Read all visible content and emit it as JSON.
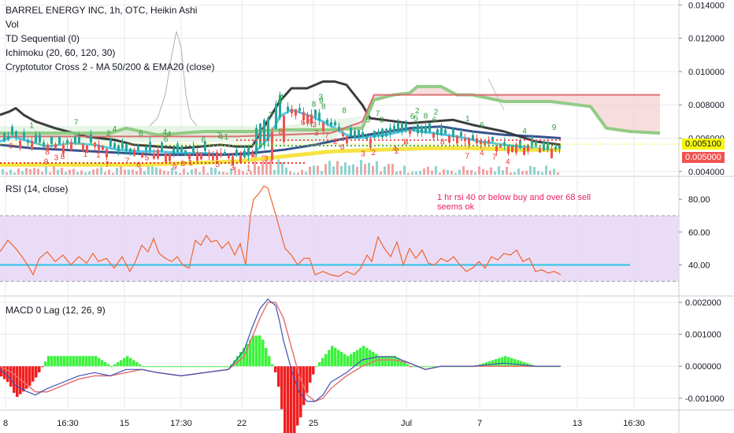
{
  "header": {
    "title": "BARREL ENERGY INC, 1h, OTC, Heikin Ashi",
    "studies": [
      "Vol",
      "TD Sequential (0)",
      "Ichimoku (20, 60, 120, 30)",
      "Cryptotutor Cross 2 - MA 50/200 & EMA20 (close)"
    ]
  },
  "rsi_label": "RSI (14, close)",
  "macd_label": "MACD 0 Lag (12, 26, 9)",
  "annotation": [
    "1 hr rsi 40 or below buy and over 68 sell",
    "seems ok"
  ],
  "price_tags": {
    "current": "0.005100",
    "low": "0.005000"
  },
  "colors": {
    "background": "#ffffff",
    "grid": "#e6e9ef",
    "rsi_band": "#e6d6f4",
    "rsi_line": "#f0642d",
    "rsi_ref": "#27c4e5",
    "ema_cyan": "#45c6e8",
    "ma_navy": "#2d4a86",
    "kijun_black": "#333333",
    "ichimoku_green": "#8cc981",
    "ichimoku_red": "#d9686a",
    "yellow_ma": "#f6e23a",
    "macd_up": "#3cf23c",
    "macd_down": "#f21e1e",
    "td_red": "#e53935",
    "td_green": "#2e9b3b",
    "tag_yellow": "#f6f60d",
    "tag_red": "#ef5350"
  },
  "chart_data": [
    {
      "type": "line",
      "title": "BARREL ENERGY INC, 1h, OTC, Heikin Ashi",
      "y_ticks": [
        "0.004000",
        "0.006000",
        "0.008000",
        "0.010000",
        "0.012000",
        "0.014000"
      ],
      "ylim": [
        0.0038,
        0.0143
      ],
      "x_ticks": [
        "8",
        "16:30",
        "15",
        "17:30",
        "22",
        "25",
        "Jul",
        "7",
        "13",
        "16:30"
      ],
      "series": [
        {
          "x": [
            0,
            16,
            30,
            60,
            90,
            120,
            150,
            180,
            200,
            230,
            260,
            290,
            310,
            325,
            335,
            345,
            355,
            370,
            390,
            410,
            425,
            440,
            455,
            470,
            490,
            520,
            550,
            580,
            610,
            640,
            660,
            680,
            700,
            712
          ],
          "y": [
            0.0058,
            0.0061,
            0.0059,
            0.0055,
            0.0057,
            0.0056,
            0.0053,
            0.0052,
            0.0052,
            0.0051,
            0.0051,
            0.005,
            0.005,
            0.0052,
            0.0057,
            0.0063,
            0.0073,
            0.0077,
            0.0074,
            0.007,
            0.0066,
            0.0062,
            0.006,
            0.0061,
            0.0062,
            0.0065,
            0.0063,
            0.0061,
            0.0058,
            0.0056,
            0.0055,
            0.0054,
            0.0053,
            0.0053
          ]
        },
        {
          "x": [
            0,
            20,
            40,
            80,
            120,
            160,
            200,
            240,
            280,
            320,
            360,
            400,
            440,
            480,
            520,
            560,
            600,
            640,
            680,
            712
          ],
          "y": [
            0.0056,
            0.0055,
            0.0054,
            0.0053,
            0.0052,
            0.0051,
            0.005,
            0.005,
            0.005,
            0.0051,
            0.0053,
            0.0056,
            0.006,
            0.0063,
            0.0066,
            0.0067,
            0.0064,
            0.0062,
            0.0061,
            0.006
          ]
        },
        {
          "x": [
            0,
            12,
            20,
            30,
            45,
            70,
            110,
            145,
            170,
            200,
            230,
            255,
            280,
            300,
            320,
            355,
            370,
            390,
            410,
            425,
            440,
            450,
            460,
            470,
            520,
            575,
            600,
            640,
            680,
            712
          ],
          "y": [
            0.0074,
            0.0076,
            0.0078,
            0.0074,
            0.007,
            0.0066,
            0.0061,
            0.0059,
            0.0056,
            0.0055,
            0.0054,
            0.0055,
            0.0056,
            0.0055,
            0.0055,
            0.0082,
            0.009,
            0.009,
            0.0094,
            0.0094,
            0.0092,
            0.0086,
            0.008,
            0.0072,
            0.0069,
            0.0071,
            0.0068,
            0.0064,
            0.0058,
            0.0056
          ]
        },
        {
          "x": [
            0,
            100,
            140,
            160,
            200,
            260,
            320,
            360,
            420,
            460,
            475,
            500,
            520,
            530,
            560,
            580,
            600,
            640,
            700,
            750,
            770,
            800,
            838
          ],
          "y": [
            0.0063,
            0.0063,
            0.0063,
            0.0066,
            0.0062,
            0.0064,
            0.0064,
            0.0065,
            0.0065,
            0.0066,
            0.0083,
            0.0086,
            0.0087,
            0.0091,
            0.0091,
            0.0086,
            0.0086,
            0.0082,
            0.0082,
            0.0079,
            0.0066,
            0.0064,
            0.0063
          ]
        },
        {
          "x": [
            0,
            100,
            200,
            300,
            360,
            420,
            460,
            475,
            500,
            600,
            700,
            838
          ],
          "y": [
            0.0061,
            0.0061,
            0.0061,
            0.0061,
            0.0062,
            0.0063,
            0.007,
            0.0086,
            0.0086,
            0.0086,
            0.0086,
            0.0086
          ]
        },
        {
          "x": [
            0,
            60,
            120,
            180,
            240,
            300,
            360,
            420,
            480,
            540,
            600,
            660,
            712
          ],
          "y": [
            0.0044,
            0.0044,
            0.0044,
            0.0044,
            0.0045,
            0.0046,
            0.0049,
            0.0052,
            0.0053,
            0.0054,
            0.0054,
            0.0053,
            0.0053
          ]
        }
      ]
    },
    {
      "type": "line",
      "title": "RSI (14, close)",
      "ylim": [
        22,
        93
      ],
      "y_ticks": [
        "40.00",
        "60.00",
        "80.00"
      ],
      "band": [
        30,
        70
      ],
      "reference": 40,
      "series": [
        {
          "x": [
            0,
            10,
            20,
            28,
            35,
            42,
            50,
            60,
            70,
            80,
            90,
            100,
            110,
            118,
            125,
            135,
            145,
            155,
            165,
            172,
            180,
            188,
            195,
            202,
            210,
            218,
            225,
            232,
            240,
            248,
            255,
            262,
            268,
            275,
            282,
            290,
            298,
            305,
            312,
            318,
            322,
            328,
            335,
            340,
            348,
            355,
            362,
            370,
            378,
            386,
            393,
            400,
            410,
            420,
            430,
            440,
            450,
            458,
            466,
            472,
            480,
            488,
            496,
            504,
            512,
            520,
            528,
            536,
            544,
            552,
            560,
            568,
            576,
            584,
            592,
            600,
            608,
            616,
            624,
            632,
            640,
            648,
            656,
            664,
            672,
            680,
            688,
            696,
            704,
            712
          ],
          "y": [
            48,
            55,
            50,
            45,
            40,
            34,
            44,
            48,
            42,
            46,
            40,
            45,
            41,
            47,
            42,
            44,
            38,
            45,
            36,
            42,
            52,
            48,
            56,
            47,
            44,
            42,
            45,
            40,
            38,
            55,
            52,
            58,
            54,
            55,
            50,
            54,
            46,
            53,
            40,
            70,
            80,
            83,
            88,
            87,
            74,
            62,
            50,
            46,
            40,
            44,
            44,
            34,
            36,
            34,
            33,
            36,
            34,
            38,
            46,
            42,
            57,
            50,
            45,
            54,
            40,
            50,
            44,
            49,
            41,
            40,
            44,
            42,
            45,
            40,
            36,
            38,
            42,
            38,
            45,
            43,
            47,
            46,
            49,
            42,
            44,
            36,
            37,
            35,
            36,
            34
          ]
        }
      ]
    },
    {
      "type": "line",
      "title": "MACD 0 Lag (12, 26, 9)",
      "ylim": [
        -0.00135,
        0.00215
      ],
      "y_ticks": [
        "-0.001000",
        "0.000000",
        "0.001000",
        "0.002000"
      ],
      "series": [
        {
          "x": [
            0,
            10,
            20,
            35,
            45,
            60,
            80,
            100,
            120,
            140,
            160,
            180,
            200,
            230,
            260,
            290,
            310,
            320,
            330,
            340,
            350,
            355,
            360,
            370,
            380,
            390,
            400,
            410,
            420,
            440,
            460,
            480,
            500,
            520,
            540,
            560,
            600,
            640,
            680,
            712
          ],
          "y": [
            -0.0001,
            -0.0003,
            -0.0006,
            -0.0008,
            -0.0009,
            -0.0007,
            -0.0005,
            -0.0003,
            -0.0002,
            -0.0003,
            -0.0001,
            -0.0001,
            -0.0002,
            -0.0003,
            -0.0002,
            -0.0001,
            0.0005,
            0.0012,
            0.0018,
            0.0021,
            0.0019,
            0.0014,
            0.0008,
            -0.0001,
            -0.0008,
            -0.0011,
            -0.0011,
            -0.0009,
            -0.0005,
            -0.0002,
            0.0002,
            0.0003,
            0.0003,
            0.0001,
            -0.0001,
            0.0,
            0.0,
            0.0001,
            0.0,
            0.0
          ]
        },
        {
          "x": [
            0,
            15,
            30,
            45,
            60,
            80,
            100,
            120,
            140,
            160,
            180,
            200,
            230,
            260,
            290,
            310,
            320,
            330,
            340,
            350,
            360,
            370,
            380,
            390,
            400,
            410,
            420,
            440,
            460,
            480,
            500,
            520,
            540,
            560,
            600,
            640,
            680,
            712
          ],
          "y": [
            0.0,
            -0.0002,
            -0.0005,
            -0.0008,
            -0.0008,
            -0.0006,
            -0.0004,
            -0.0003,
            -0.0003,
            -0.0002,
            -0.0001,
            -0.0002,
            -0.0003,
            -0.0002,
            -0.0001,
            0.0003,
            0.0009,
            0.0015,
            0.002,
            0.002,
            0.0015,
            0.0006,
            -0.0003,
            -0.0009,
            -0.0011,
            -0.001,
            -0.0007,
            -0.0003,
            0.0,
            0.0002,
            0.0002,
            0.0001,
            -0.0001,
            0.0,
            0.0,
            0.0,
            0.0,
            0.0
          ]
        }
      ]
    }
  ]
}
